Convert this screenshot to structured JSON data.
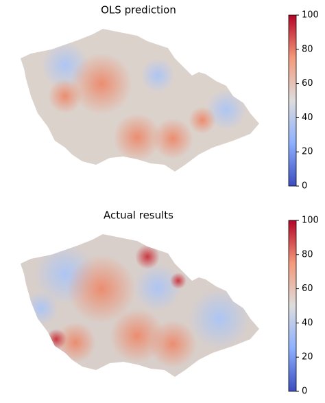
{
  "panels": [
    {
      "title": "OLS prediction",
      "colorbar": {
        "lim": [
          0,
          100
        ],
        "ticks": [
          0,
          20,
          40,
          60,
          80,
          100
        ]
      }
    },
    {
      "title": "Actual results",
      "colorbar": {
        "lim": [
          0,
          100
        ],
        "ticks": [
          0,
          20,
          40,
          60,
          80,
          100
        ]
      }
    }
  ]
}
